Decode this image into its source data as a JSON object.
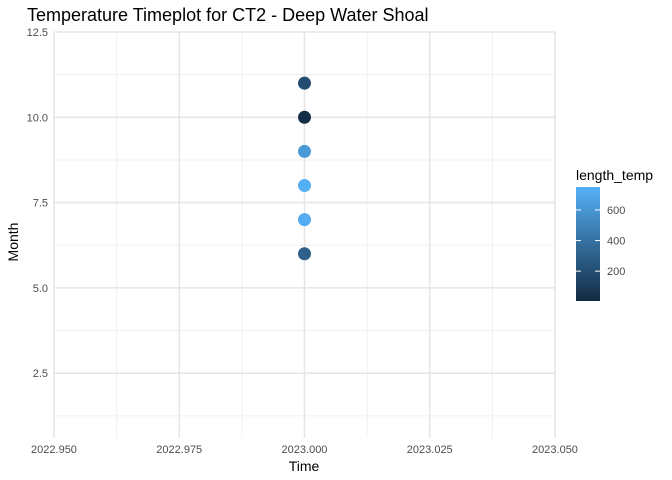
{
  "chart_data": {
    "type": "scatter",
    "title": "Temperature Timeplot for CT2 - Deep Water Shoal",
    "xlabel": "Time",
    "ylabel": "Month",
    "xlim": [
      2022.95,
      2023.05
    ],
    "ylim": [
      0.6,
      12.5
    ],
    "x_ticks": [
      2022.95,
      2022.975,
      2023.0,
      2023.025,
      2023.05
    ],
    "x_tick_labels": [
      "2022.950",
      "2022.975",
      "2023.000",
      "2023.025",
      "2023.050"
    ],
    "y_ticks": [
      2.5,
      5.0,
      7.5,
      10.0,
      12.5
    ],
    "y_tick_labels": [
      "2.5",
      "5.0",
      "7.5",
      "10.0",
      "12.5"
    ],
    "grid": true,
    "legend": {
      "title": "length_temp",
      "placement": "right",
      "type": "colorbar",
      "range": [
        5,
        750
      ],
      "ticks": [
        200,
        400,
        600
      ],
      "tick_labels": [
        "200",
        "400",
        "600"
      ],
      "low_color": "#132B43",
      "high_color": "#56B1F7"
    },
    "points": [
      {
        "x": 2023.0,
        "y": 11,
        "length_temp": 190
      },
      {
        "x": 2023.0,
        "y": 10,
        "length_temp": 20
      },
      {
        "x": 2023.0,
        "y": 9,
        "length_temp": 620
      },
      {
        "x": 2023.0,
        "y": 8,
        "length_temp": 740
      },
      {
        "x": 2023.0,
        "y": 7,
        "length_temp": 730
      },
      {
        "x": 2023.0,
        "y": 6,
        "length_temp": 300
      }
    ]
  }
}
